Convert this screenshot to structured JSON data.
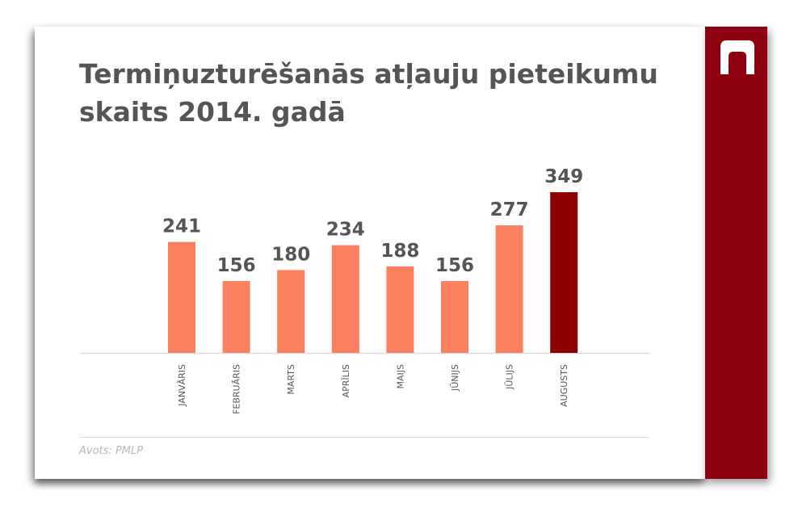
{
  "title_lines": [
    "Termiņuzturēšanās atļauju pieteikumu",
    "skaits 2014. gadā"
  ],
  "source": "Avots: PMLP",
  "logo_icon": "arch-icon",
  "colors": {
    "sidebar": "#8c0010",
    "bar": "#fa8060",
    "bar_highlight": "#8c0000",
    "value_label": "#555555",
    "axis": "#dddddd",
    "text": "#555555"
  },
  "chart_data": {
    "type": "bar",
    "title": "Termiņuzturēšanās atļauju pieteikumu skaits 2014. gadā",
    "categories": [
      "JANVĀRIS",
      "FEBRUĀRIS",
      "MARTS",
      "APRĪLIS",
      "MAIJS",
      "JŪNIJS",
      "JŪLIJS",
      "AUGUSTS"
    ],
    "values": [
      241,
      156,
      180,
      234,
      188,
      156,
      277,
      349
    ],
    "highlight_index": 7,
    "xlabel": "",
    "ylabel": "",
    "ylim": [
      0,
      349
    ],
    "grid": false,
    "legend": "none",
    "tick_label_rotation": "vertical"
  }
}
